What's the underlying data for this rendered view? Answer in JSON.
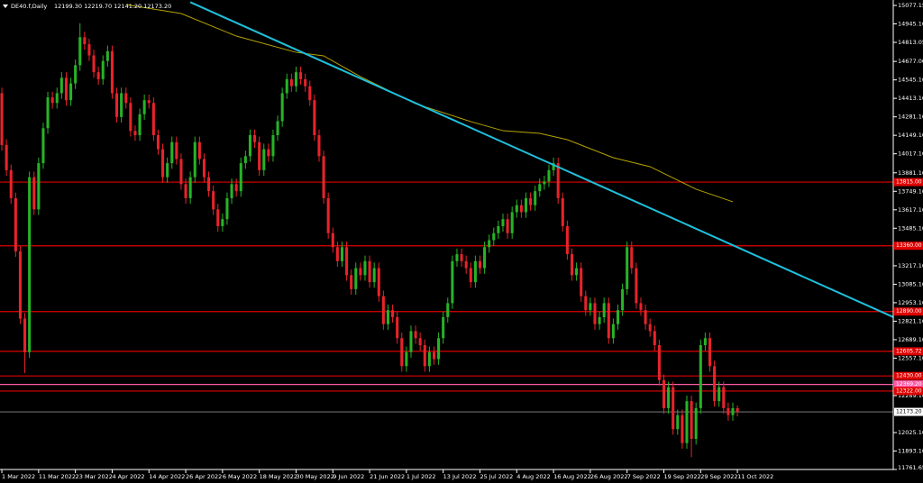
{
  "chart_data": {
    "type": "candlestick",
    "title": "DE40.f,Daily",
    "subtitle": "12199.30 12219.70 12141.20 12173.20",
    "bull_color": "#27b327",
    "bear_color": "#e8232a",
    "open": [
      14450,
      14080,
      13900,
      13700,
      13320,
      12840,
      12600,
      13850,
      13620,
      13950,
      14200,
      14420,
      14380,
      14450,
      14560,
      14400,
      14520,
      14650,
      14850,
      14800,
      14720,
      14600,
      14550,
      14680,
      14750,
      14450,
      14280,
      14450,
      14380,
      14180,
      14150,
      14300,
      14400,
      14380,
      14150,
      14050,
      13850,
      13950,
      14100,
      13980,
      13800,
      13700,
      13850,
      14100,
      13980,
      13850,
      13750,
      13620,
      13500,
      13550,
      13700,
      13800,
      13750,
      13950,
      14000,
      14150,
      14100,
      13900,
      14050,
      14000,
      14150,
      14250,
      14450,
      14550,
      14500,
      14600,
      14550,
      14500,
      14400,
      14150,
      14000,
      13700,
      13450,
      13350,
      13250,
      13350,
      13150,
      13050,
      13200,
      13150,
      13250,
      13100,
      13200,
      13000,
      12800,
      12900,
      12850,
      12700,
      12500,
      12600,
      12750,
      12700,
      12650,
      12500,
      12600,
      12550,
      12700,
      12850,
      12950,
      13250,
      13300,
      13250,
      13200,
      13100,
      13250,
      13200,
      13350,
      13400,
      13450,
      13500,
      13550,
      13450,
      13600,
      13650,
      13600,
      13700,
      13650,
      13750,
      13800,
      13820,
      13900,
      13950,
      13700,
      13500,
      13300,
      13150,
      13200,
      13000,
      12900,
      12950,
      12800,
      12850,
      12950,
      12700,
      12800,
      12900,
      13050,
      13350,
      13200,
      12950,
      12900,
      12800,
      12750,
      12650,
      12400,
      12200,
      12350,
      12050,
      12150,
      11950,
      12250,
      11980,
      12200,
      12650,
      12700,
      12500,
      12250,
      12350,
      12200,
      12150,
      12199.3
    ],
    "high": [
      14490,
      14120,
      13940,
      13740,
      13360,
      12880,
      13890,
      13890,
      13990,
      14240,
      14460,
      14460,
      14490,
      14600,
      14600,
      14560,
      14690,
      14950,
      14890,
      14840,
      14760,
      14640,
      14720,
      14790,
      14790,
      14490,
      14490,
      14490,
      14420,
      14220,
      14340,
      14440,
      14440,
      14420,
      14190,
      14090,
      13990,
      14140,
      14140,
      14020,
      13840,
      13890,
      14140,
      14140,
      14020,
      13890,
      13790,
      13660,
      13590,
      13740,
      13840,
      13840,
      13990,
      14040,
      14190,
      14190,
      14140,
      14090,
      14090,
      14190,
      14290,
      14490,
      14590,
      14590,
      14640,
      14640,
      14590,
      14540,
      14440,
      14190,
      14040,
      13740,
      13490,
      13390,
      13390,
      13390,
      13190,
      13240,
      13240,
      13290,
      13290,
      13240,
      13240,
      13040,
      12940,
      12940,
      12890,
      12740,
      12640,
      12790,
      12790,
      12740,
      12690,
      12640,
      12640,
      12740,
      12890,
      12990,
      13290,
      13340,
      13340,
      13290,
      13240,
      13290,
      13290,
      13390,
      13440,
      13490,
      13540,
      13590,
      13590,
      13640,
      13690,
      13690,
      13740,
      13740,
      13790,
      13840,
      13860,
      13940,
      13990,
      13990,
      13740,
      13540,
      13340,
      13240,
      13240,
      13040,
      12990,
      12990,
      12890,
      12990,
      12990,
      12840,
      12940,
      13090,
      13390,
      13390,
      13240,
      12990,
      12940,
      12840,
      12790,
      12690,
      12440,
      12390,
      12390,
      12190,
      12190,
      12290,
      12290,
      12240,
      12690,
      12740,
      12740,
      12540,
      12390,
      12390,
      12240,
      12239.3,
      12219.7
    ],
    "low": [
      14040,
      13860,
      13660,
      13280,
      12800,
      12450,
      12560,
      13580,
      13580,
      13910,
      14160,
      14340,
      14340,
      14410,
      14360,
      14360,
      14480,
      14610,
      14760,
      14680,
      14560,
      14510,
      14510,
      14640,
      14410,
      14240,
      14240,
      14340,
      14140,
      14110,
      14110,
      14260,
      14340,
      14110,
      14010,
      13810,
      13810,
      13910,
      13940,
      13760,
      13660,
      13660,
      13810,
      13940,
      13810,
      13710,
      13580,
      13460,
      13460,
      13510,
      13660,
      13710,
      13710,
      13910,
      13960,
      14060,
      13860,
      13860,
      13960,
      13960,
      14110,
      14210,
      14410,
      14460,
      14460,
      14510,
      14460,
      14360,
      14110,
      13960,
      13660,
      13410,
      13310,
      13210,
      13210,
      13110,
      13010,
      13010,
      13110,
      13110,
      13060,
      13060,
      12960,
      12760,
      12760,
      12810,
      12660,
      12460,
      12460,
      12560,
      12660,
      12610,
      12460,
      12460,
      12510,
      12510,
      12660,
      12810,
      12910,
      13210,
      13210,
      13160,
      13060,
      13060,
      13160,
      13160,
      13310,
      13360,
      13410,
      13460,
      13410,
      13410,
      13560,
      13560,
      13560,
      13610,
      13610,
      13710,
      13760,
      13780,
      13860,
      13660,
      13460,
      13260,
      13110,
      13110,
      12960,
      12860,
      12860,
      12760,
      12760,
      12810,
      12660,
      12660,
      12760,
      12860,
      13010,
      13160,
      12910,
      12860,
      12760,
      12710,
      12610,
      12360,
      12160,
      12160,
      12010,
      12010,
      11910,
      11910,
      11850,
      11940,
      12160,
      12610,
      12460,
      12210,
      12210,
      12160,
      12110,
      12110,
      12141.2
    ],
    "close": [
      14080,
      13900,
      13700,
      13320,
      12840,
      12600,
      13850,
      13620,
      13950,
      14200,
      14420,
      14380,
      14450,
      14560,
      14400,
      14520,
      14650,
      14850,
      14800,
      14720,
      14600,
      14550,
      14680,
      14750,
      14450,
      14280,
      14450,
      14380,
      14180,
      14150,
      14300,
      14400,
      14380,
      14150,
      14050,
      13850,
      13950,
      14100,
      13980,
      13800,
      13700,
      13850,
      14100,
      13980,
      13850,
      13750,
      13620,
      13500,
      13550,
      13700,
      13800,
      13750,
      13950,
      14000,
      14150,
      14100,
      13900,
      14050,
      14000,
      14150,
      14250,
      14450,
      14550,
      14500,
      14600,
      14550,
      14500,
      14400,
      14150,
      14000,
      13700,
      13450,
      13350,
      13250,
      13350,
      13150,
      13050,
      13200,
      13150,
      13250,
      13100,
      13200,
      13000,
      12800,
      12900,
      12850,
      12700,
      12500,
      12600,
      12750,
      12700,
      12650,
      12500,
      12600,
      12550,
      12700,
      12850,
      12950,
      13250,
      13300,
      13250,
      13200,
      13100,
      13250,
      13200,
      13350,
      13400,
      13450,
      13500,
      13550,
      13450,
      13600,
      13650,
      13600,
      13700,
      13650,
      13750,
      13800,
      13820,
      13900,
      13950,
      13700,
      13500,
      13300,
      13150,
      13200,
      13000,
      12900,
      12950,
      12800,
      12850,
      12950,
      12700,
      12800,
      12900,
      13050,
      13350,
      13200,
      12950,
      12900,
      12800,
      12750,
      12650,
      12400,
      12200,
      12350,
      12050,
      12150,
      11950,
      12250,
      11980,
      12200,
      12650,
      12700,
      12500,
      12250,
      12350,
      12200,
      12150,
      12199.3,
      12173.2
    ],
    "xlim": [
      -0.4,
      193.9
    ],
    "ylim": [
      11761.65,
      15077.15
    ],
    "xticks": [
      {
        "value": 0,
        "label": "1 Mar 2022"
      },
      {
        "value": 8,
        "label": "11 Mar 2022"
      },
      {
        "value": 16,
        "label": "23 Mar 2022"
      },
      {
        "value": 24,
        "label": "4 Apr 2022"
      },
      {
        "value": 32,
        "label": "14 Apr 2022"
      },
      {
        "value": 40,
        "label": "26 Apr 2022"
      },
      {
        "value": 48,
        "label": "6 May 2022"
      },
      {
        "value": 56,
        "label": "18 May 2022"
      },
      {
        "value": 64,
        "label": "30 May 2022"
      },
      {
        "value": 72,
        "label": "9 Jun 2022"
      },
      {
        "value": 80,
        "label": "21 Jun 2022"
      },
      {
        "value": 88,
        "label": "1 Jul 2022"
      },
      {
        "value": 96,
        "label": "13 Jul 2022"
      },
      {
        "value": 104,
        "label": "25 Jul 2022"
      },
      {
        "value": 112,
        "label": "4 Aug 2022"
      },
      {
        "value": 120,
        "label": "16 Aug 2022"
      },
      {
        "value": 128,
        "label": "26 Aug 2022"
      },
      {
        "value": 136,
        "label": "7 Sep 2022"
      },
      {
        "value": 144,
        "label": "19 Sep 2022"
      },
      {
        "value": 152,
        "label": "29 Sep 2022"
      },
      {
        "value": 160,
        "label": "11 Oct 2022"
      }
    ],
    "yticks": [
      {
        "value": 15077.15,
        "label": "15077.15"
      },
      {
        "value": 14945.1,
        "label": "14945.10"
      },
      {
        "value": 14813.05,
        "label": "14813.05"
      },
      {
        "value": 14677,
        "label": "14677.00"
      },
      {
        "value": 14545.1,
        "label": "14545.10"
      },
      {
        "value": 14413.1,
        "label": "14413.10"
      },
      {
        "value": 14281.1,
        "label": "14281.10"
      },
      {
        "value": 14149.1,
        "label": "14149.10"
      },
      {
        "value": 14017.1,
        "label": "14017.10"
      },
      {
        "value": 13881.1,
        "label": "13881.10"
      },
      {
        "value": 13749.1,
        "label": "13749.10"
      },
      {
        "value": 13617.1,
        "label": "13617.10"
      },
      {
        "value": 13485.1,
        "label": "13485.10"
      },
      {
        "value": 13217.1,
        "label": "13217.10"
      },
      {
        "value": 13085.1,
        "label": "13085.10"
      },
      {
        "value": 12953.1,
        "label": "12953.10"
      },
      {
        "value": 12821.1,
        "label": "12821.10"
      },
      {
        "value": 12689.1,
        "label": "12689.10"
      },
      {
        "value": 12557.1,
        "label": "12557.10"
      },
      {
        "value": 12289.1,
        "label": "12289.10"
      },
      {
        "value": 12025.1,
        "label": "12025.10"
      },
      {
        "value": 11893.1,
        "label": "11893.10"
      },
      {
        "value": 11761.65,
        "label": "11761.65"
      }
    ],
    "levels": [
      {
        "value": 13815,
        "label": "13815.00",
        "color": "#e00000"
      },
      {
        "value": 13360,
        "label": "13360.00",
        "color": "#e00000"
      },
      {
        "value": 12890,
        "label": "12890.00",
        "color": "#e00000"
      },
      {
        "value": 12605.72,
        "label": "12605.72",
        "color": "#e00000"
      },
      {
        "value": 12430,
        "label": "12430.00",
        "color": "#e00000"
      },
      {
        "value": 12369.2,
        "label": "12369.20",
        "color": "#ff5ca8"
      },
      {
        "value": 12322,
        "label": "12322.00",
        "color": "#e00000"
      }
    ],
    "last_price": {
      "value": 12173.2,
      "label": "12173.20",
      "color": "#8c8c8c"
    },
    "trendline": {
      "x": [
        41,
        194
      ],
      "values": [
        15100,
        12849
      ],
      "color": "#1fc0dc"
    },
    "moving_average": {
      "x": [
        27,
        39,
        51,
        64,
        70,
        78,
        90,
        102,
        109,
        117,
        123,
        133,
        141,
        151,
        159
      ],
      "values": [
        15083,
        15019,
        14858,
        14742,
        14717,
        14568,
        14375,
        14247,
        14182,
        14163,
        14118,
        13989,
        13925,
        13764,
        13674
      ],
      "color": "#b5a300"
    }
  }
}
